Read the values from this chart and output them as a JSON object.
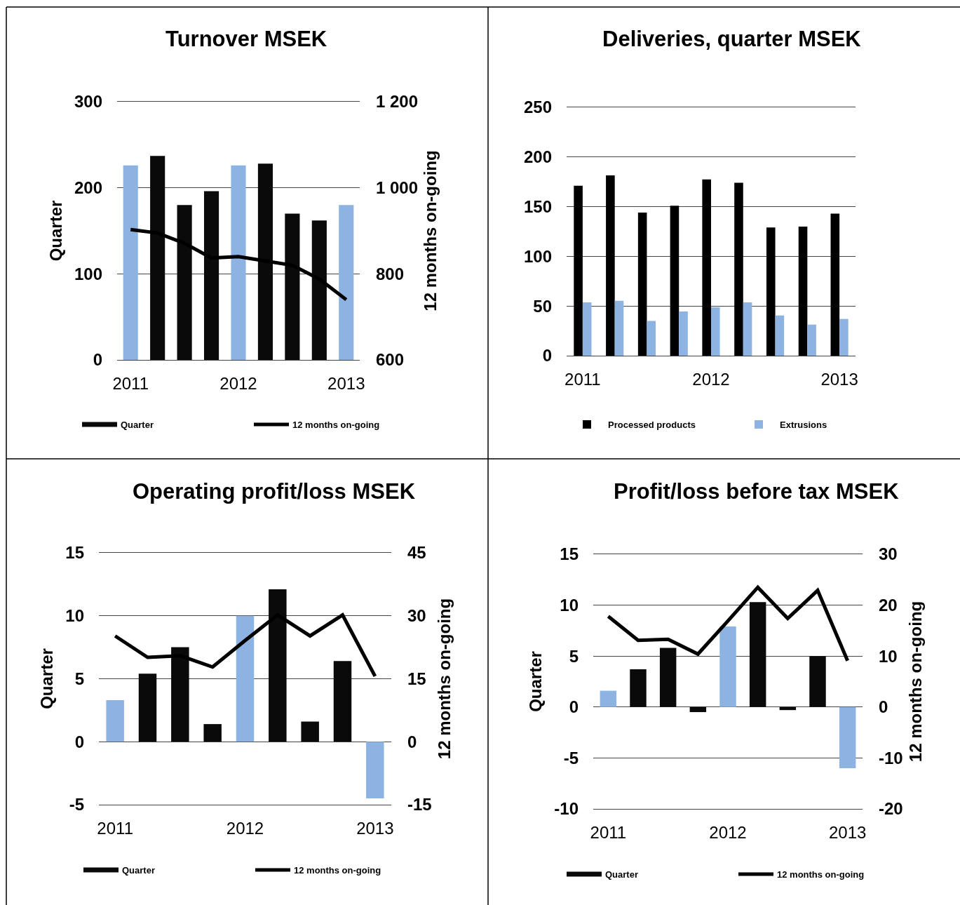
{
  "chart_data": [
    {
      "type": "bar",
      "title": "Turnover MSEK",
      "ylabel": "Quarter",
      "y2label": "12 months on-going",
      "categories": [
        "2011",
        null,
        null,
        null,
        "2012",
        null,
        null,
        null,
        "2013"
      ],
      "series": [
        {
          "name": "Quarter",
          "color": "#0a0a0a",
          "colors": [
            "#8db3e2",
            "#0a0a0a",
            "#0a0a0a",
            "#0a0a0a",
            "#8db3e2",
            "#0a0a0a",
            "#0a0a0a",
            "#0a0a0a",
            "#8db3e2"
          ],
          "values": [
            226,
            237,
            180,
            196,
            226,
            228,
            170,
            162,
            180
          ]
        },
        {
          "name": "12 months on-going",
          "type": "line",
          "axis": "y2",
          "color": "#000000",
          "values": [
            903,
            895,
            871,
            837,
            840,
            830,
            820,
            788,
            740
          ]
        }
      ],
      "ylim": [
        0,
        300
      ],
      "yticks": [
        0,
        100,
        200,
        300
      ],
      "y2lim": [
        600,
        1200
      ],
      "y2ticks": [
        600,
        800,
        {
          "value": 1000,
          "label": "1 000"
        },
        {
          "value": 1200,
          "label": "1 200"
        }
      ],
      "grid": "y",
      "legend": "bottom"
    },
    {
      "type": "bar",
      "title": "Deliveries, quarter MSEK",
      "categories": [
        "2011",
        null,
        null,
        null,
        "2012",
        null,
        null,
        null,
        "2013"
      ],
      "series": [
        {
          "name": "Processed products",
          "color": "#000000",
          "values": [
            171,
            181.5,
            144,
            151,
            177.5,
            174,
            129,
            130,
            143
          ]
        },
        {
          "name": "Extrusions",
          "color": "#8db3e2",
          "values": [
            53.7,
            55.3,
            35,
            44.5,
            48.7,
            53.7,
            40.5,
            31.3,
            37
          ]
        }
      ],
      "ylim": [
        0,
        250
      ],
      "yticks": [
        0,
        50,
        100,
        150,
        200,
        250
      ],
      "grid": "y",
      "legend": "bottom"
    },
    {
      "type": "bar",
      "title": "Operating profit/loss MSEK",
      "ylabel": "Quarter",
      "y2label": "12 months on-going",
      "categories": [
        "2011",
        null,
        null,
        null,
        "2012",
        null,
        null,
        null,
        "2013"
      ],
      "series": [
        {
          "name": "Quarter",
          "color": "#0a0a0a",
          "colors": [
            "#8db3e2",
            "#0a0a0a",
            "#0a0a0a",
            "#0a0a0a",
            "#8db3e2",
            "#0a0a0a",
            "#0a0a0a",
            "#0a0a0a",
            "#8db3e2"
          ],
          "values": [
            3.3,
            5.4,
            7.5,
            1.4,
            10,
            12.1,
            1.6,
            6.4,
            -4.5
          ]
        },
        {
          "name": "12 months on-going",
          "type": "line",
          "axis": "y2",
          "color": "#000000",
          "values": [
            25.2,
            20.1,
            20.5,
            17.8,
            24.1,
            30.2,
            25.2,
            30.2,
            15.6
          ]
        }
      ],
      "ylim": [
        -5,
        15
      ],
      "yticks": [
        -5,
        0,
        5,
        10,
        15
      ],
      "y2lim": [
        -15,
        45
      ],
      "y2ticks": [
        -15,
        0,
        15,
        30,
        45
      ],
      "grid": "y",
      "legend": "bottom"
    },
    {
      "type": "bar",
      "title": "Profit/loss before tax MSEK",
      "ylabel": "Quarter",
      "y2label": "12 months on-going",
      "categories": [
        "2011",
        null,
        null,
        null,
        "2012",
        null,
        null,
        null,
        "2013"
      ],
      "series": [
        {
          "name": "Quarter",
          "color": "#0a0a0a",
          "colors": [
            "#8db3e2",
            "#0a0a0a",
            "#0a0a0a",
            "#0a0a0a",
            "#8db3e2",
            "#0a0a0a",
            "#0a0a0a",
            "#0a0a0a",
            "#8db3e2"
          ],
          "values": [
            1.6,
            3.7,
            5.8,
            -0.5,
            7.9,
            10.3,
            -0.3,
            5,
            -6
          ]
        },
        {
          "name": "12 months on-going",
          "type": "line",
          "axis": "y2",
          "color": "#000000",
          "values": [
            17.8,
            13.1,
            13.3,
            10.4,
            16.9,
            23.5,
            17.4,
            22.9,
            9.1
          ]
        }
      ],
      "ylim": [
        -10,
        15
      ],
      "yticks": [
        -10,
        -5,
        0,
        5,
        10,
        15
      ],
      "y2lim": [
        -20,
        30
      ],
      "y2ticks": [
        -20,
        -10,
        0,
        10,
        20,
        30
      ],
      "grid": "y",
      "legend": "bottom"
    }
  ]
}
